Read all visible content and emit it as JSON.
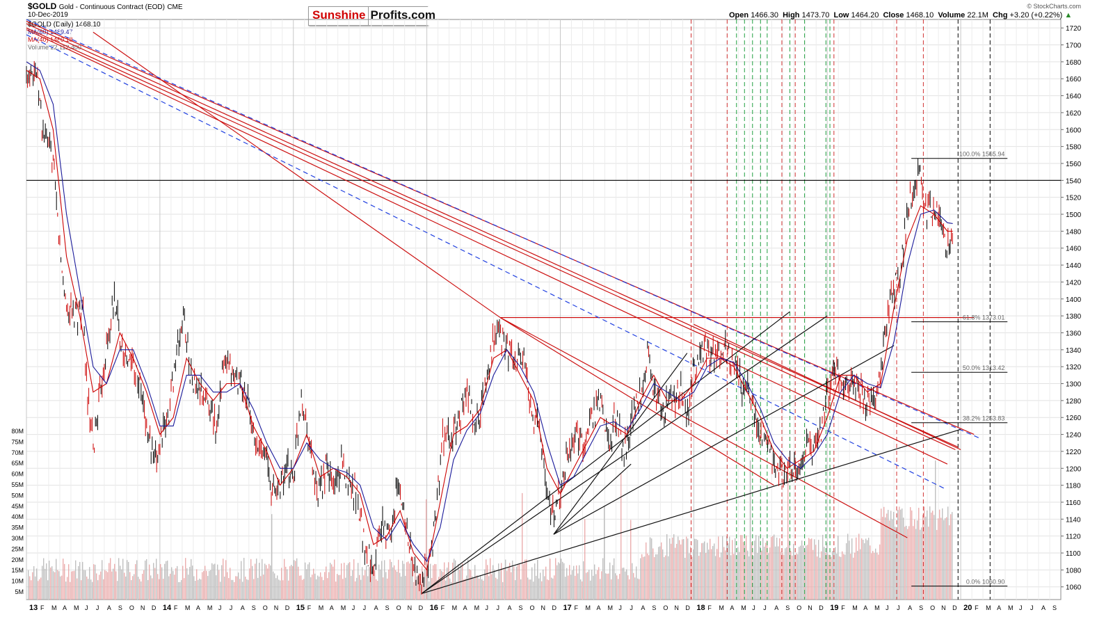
{
  "header": {
    "symbol": "$GOLD",
    "description": "Gold - Continuous Contract (EOD)",
    "exchange": "CME",
    "date": "10-Dec-2019",
    "open_label": "Open",
    "open": "1466.30",
    "high_label": "High",
    "high": "1473.70",
    "low_label": "Low",
    "low": "1464.20",
    "close_label": "Close",
    "close": "1468.10",
    "volume_label": "Volume",
    "volume": "22.1M",
    "chg_label": "Chg",
    "chg": "+3.20 (+0.22%)",
    "copyright": "© StockCharts.com"
  },
  "logo": {
    "part1": "Sunshine",
    "part2": "Profits.com"
  },
  "legend": {
    "gold": "$GOLD (Daily) 1468.10",
    "ma60": "MA(60) 1489.47",
    "ma40": "MA(40) 1480.18",
    "volume": "Volume 22,112,400"
  },
  "colors": {
    "ma60": "#1a1a9a",
    "ma40": "#cc0000",
    "vol_up": "#e8a0a0",
    "vol_down": "#aaaaaa"
  },
  "chart_data": {
    "type": "line",
    "title": "$GOLD Gold - Continuous Contract (EOD)",
    "ylim": [
      1045,
      1730
    ],
    "y_ticks": [
      1060,
      1080,
      1100,
      1120,
      1140,
      1160,
      1180,
      1200,
      1220,
      1240,
      1260,
      1280,
      1300,
      1320,
      1340,
      1360,
      1380,
      1400,
      1420,
      1440,
      1460,
      1480,
      1500,
      1520,
      1540,
      1560,
      1580,
      1600,
      1620,
      1640,
      1660,
      1680,
      1700,
      1720
    ],
    "volume_ticks": [
      "5M",
      "10M",
      "15M",
      "20M",
      "25M",
      "30M",
      "35M",
      "40M",
      "45M",
      "50M",
      "55M",
      "60M",
      "65M",
      "70M",
      "75M",
      "80M"
    ],
    "x_labels": [
      "13",
      "F",
      "M",
      "A",
      "M",
      "J",
      "J",
      "A",
      "S",
      "O",
      "N",
      "D",
      "14",
      "F",
      "M",
      "A",
      "M",
      "J",
      "J",
      "A",
      "S",
      "O",
      "N",
      "D",
      "15",
      "F",
      "M",
      "A",
      "M",
      "J",
      "J",
      "A",
      "S",
      "O",
      "N",
      "D",
      "16",
      "F",
      "M",
      "A",
      "M",
      "J",
      "J",
      "A",
      "S",
      "O",
      "N",
      "D",
      "17",
      "F",
      "M",
      "A",
      "M",
      "J",
      "J",
      "A",
      "S",
      "O",
      "N",
      "D",
      "18",
      "F",
      "M",
      "A",
      "M",
      "J",
      "J",
      "A",
      "S",
      "O",
      "N",
      "D",
      "19",
      "F",
      "M",
      "A",
      "M",
      "J",
      "J",
      "A",
      "S",
      "O",
      "N",
      "D",
      "20",
      "F",
      "M",
      "A",
      "M",
      "J",
      "J",
      "A",
      "S"
    ],
    "x_year_labels": [
      "13",
      "14",
      "15",
      "16",
      "17",
      "18",
      "19",
      "20"
    ],
    "price_path": [
      [
        2013.0,
        1660
      ],
      [
        2013.04,
        1680
      ],
      [
        2013.08,
        1665
      ],
      [
        2013.12,
        1600
      ],
      [
        2013.16,
        1580
      ],
      [
        2013.2,
        1560
      ],
      [
        2013.26,
        1440
      ],
      [
        2013.3,
        1390
      ],
      [
        2013.36,
        1380
      ],
      [
        2013.42,
        1390
      ],
      [
        2013.46,
        1280
      ],
      [
        2013.5,
        1220
      ],
      [
        2013.56,
        1300
      ],
      [
        2013.6,
        1340
      ],
      [
        2013.66,
        1400
      ],
      [
        2013.7,
        1360
      ],
      [
        2013.76,
        1320
      ],
      [
        2013.8,
        1330
      ],
      [
        2013.86,
        1290
      ],
      [
        2013.9,
        1250
      ],
      [
        2013.96,
        1200
      ],
      [
        2014.0,
        1230
      ],
      [
        2014.06,
        1260
      ],
      [
        2014.12,
        1330
      ],
      [
        2014.18,
        1380
      ],
      [
        2014.24,
        1300
      ],
      [
        2014.3,
        1290
      ],
      [
        2014.36,
        1280
      ],
      [
        2014.42,
        1250
      ],
      [
        2014.48,
        1320
      ],
      [
        2014.54,
        1310
      ],
      [
        2014.6,
        1300
      ],
      [
        2014.66,
        1280
      ],
      [
        2014.72,
        1220
      ],
      [
        2014.78,
        1230
      ],
      [
        2014.84,
        1170
      ],
      [
        2014.9,
        1180
      ],
      [
        2014.96,
        1200
      ],
      [
        2015.0,
        1190
      ],
      [
        2015.06,
        1290
      ],
      [
        2015.12,
        1230
      ],
      [
        2015.18,
        1160
      ],
      [
        2015.24,
        1200
      ],
      [
        2015.3,
        1180
      ],
      [
        2015.36,
        1200
      ],
      [
        2015.42,
        1185
      ],
      [
        2015.48,
        1170
      ],
      [
        2015.54,
        1100
      ],
      [
        2015.6,
        1090
      ],
      [
        2015.66,
        1130
      ],
      [
        2015.72,
        1120
      ],
      [
        2015.78,
        1180
      ],
      [
        2015.84,
        1140
      ],
      [
        2015.9,
        1080
      ],
      [
        2015.96,
        1060
      ],
      [
        2016.0,
        1080
      ],
      [
        2016.06,
        1130
      ],
      [
        2016.12,
        1240
      ],
      [
        2016.18,
        1230
      ],
      [
        2016.24,
        1260
      ],
      [
        2016.3,
        1290
      ],
      [
        2016.36,
        1250
      ],
      [
        2016.42,
        1280
      ],
      [
        2016.48,
        1340
      ],
      [
        2016.54,
        1360
      ],
      [
        2016.6,
        1340
      ],
      [
        2016.66,
        1320
      ],
      [
        2016.72,
        1330
      ],
      [
        2016.78,
        1270
      ],
      [
        2016.84,
        1250
      ],
      [
        2016.9,
        1170
      ],
      [
        2016.96,
        1140
      ],
      [
        2017.0,
        1170
      ],
      [
        2017.06,
        1220
      ],
      [
        2017.12,
        1250
      ],
      [
        2017.18,
        1220
      ],
      [
        2017.24,
        1260
      ],
      [
        2017.3,
        1280
      ],
      [
        2017.36,
        1230
      ],
      [
        2017.42,
        1260
      ],
      [
        2017.48,
        1220
      ],
      [
        2017.54,
        1260
      ],
      [
        2017.6,
        1290
      ],
      [
        2017.66,
        1340
      ],
      [
        2017.72,
        1280
      ],
      [
        2017.78,
        1270
      ],
      [
        2017.84,
        1280
      ],
      [
        2017.9,
        1290
      ],
      [
        2017.96,
        1260
      ],
      [
        2018.0,
        1320
      ],
      [
        2018.06,
        1340
      ],
      [
        2018.12,
        1330
      ],
      [
        2018.18,
        1330
      ],
      [
        2018.24,
        1340
      ],
      [
        2018.3,
        1320
      ],
      [
        2018.36,
        1300
      ],
      [
        2018.42,
        1290
      ],
      [
        2018.48,
        1250
      ],
      [
        2018.54,
        1230
      ],
      [
        2018.6,
        1200
      ],
      [
        2018.66,
        1190
      ],
      [
        2018.72,
        1200
      ],
      [
        2018.78,
        1190
      ],
      [
        2018.84,
        1230
      ],
      [
        2018.9,
        1220
      ],
      [
        2018.96,
        1250
      ],
      [
        2019.0,
        1290
      ],
      [
        2019.06,
        1320
      ],
      [
        2019.12,
        1300
      ],
      [
        2019.18,
        1300
      ],
      [
        2019.24,
        1290
      ],
      [
        2019.3,
        1280
      ],
      [
        2019.36,
        1280
      ],
      [
        2019.42,
        1340
      ],
      [
        2019.48,
        1410
      ],
      [
        2019.54,
        1420
      ],
      [
        2019.6,
        1500
      ],
      [
        2019.66,
        1540
      ],
      [
        2019.7,
        1550
      ],
      [
        2019.74,
        1500
      ],
      [
        2019.8,
        1510
      ],
      [
        2019.86,
        1480
      ],
      [
        2019.9,
        1460
      ],
      [
        2019.94,
        1468
      ]
    ],
    "ma40_path": [
      [
        2013.0,
        1670
      ],
      [
        2013.1,
        1660
      ],
      [
        2013.2,
        1600
      ],
      [
        2013.3,
        1450
      ],
      [
        2013.4,
        1380
      ],
      [
        2013.5,
        1290
      ],
      [
        2013.6,
        1300
      ],
      [
        2013.7,
        1360
      ],
      [
        2013.8,
        1330
      ],
      [
        2013.9,
        1290
      ],
      [
        2014.0,
        1240
      ],
      [
        2014.1,
        1260
      ],
      [
        2014.2,
        1330
      ],
      [
        2014.3,
        1300
      ],
      [
        2014.4,
        1280
      ],
      [
        2014.5,
        1300
      ],
      [
        2014.6,
        1300
      ],
      [
        2014.7,
        1250
      ],
      [
        2014.8,
        1220
      ],
      [
        2014.9,
        1180
      ],
      [
        2015.0,
        1200
      ],
      [
        2015.1,
        1240
      ],
      [
        2015.2,
        1190
      ],
      [
        2015.3,
        1200
      ],
      [
        2015.4,
        1190
      ],
      [
        2015.5,
        1170
      ],
      [
        2015.6,
        1110
      ],
      [
        2015.7,
        1120
      ],
      [
        2015.8,
        1150
      ],
      [
        2015.9,
        1100
      ],
      [
        2016.0,
        1080
      ],
      [
        2016.1,
        1160
      ],
      [
        2016.2,
        1240
      ],
      [
        2016.3,
        1250
      ],
      [
        2016.4,
        1270
      ],
      [
        2016.5,
        1330
      ],
      [
        2016.6,
        1340
      ],
      [
        2016.7,
        1310
      ],
      [
        2016.8,
        1280
      ],
      [
        2016.9,
        1200
      ],
      [
        2017.0,
        1170
      ],
      [
        2017.1,
        1200
      ],
      [
        2017.2,
        1230
      ],
      [
        2017.3,
        1260
      ],
      [
        2017.4,
        1250
      ],
      [
        2017.5,
        1240
      ],
      [
        2017.6,
        1280
      ],
      [
        2017.7,
        1310
      ],
      [
        2017.8,
        1280
      ],
      [
        2017.9,
        1280
      ],
      [
        2018.0,
        1300
      ],
      [
        2018.1,
        1330
      ],
      [
        2018.2,
        1330
      ],
      [
        2018.3,
        1320
      ],
      [
        2018.4,
        1290
      ],
      [
        2018.5,
        1260
      ],
      [
        2018.6,
        1220
      ],
      [
        2018.7,
        1200
      ],
      [
        2018.8,
        1210
      ],
      [
        2018.9,
        1220
      ],
      [
        2019.0,
        1260
      ],
      [
        2019.1,
        1310
      ],
      [
        2019.2,
        1310
      ],
      [
        2019.3,
        1290
      ],
      [
        2019.4,
        1300
      ],
      [
        2019.5,
        1390
      ],
      [
        2019.6,
        1470
      ],
      [
        2019.7,
        1510
      ],
      [
        2019.8,
        1500
      ],
      [
        2019.9,
        1480
      ],
      [
        2019.94,
        1480
      ]
    ],
    "ma60_path": [
      [
        2013.0,
        1680
      ],
      [
        2013.1,
        1670
      ],
      [
        2013.2,
        1630
      ],
      [
        2013.3,
        1500
      ],
      [
        2013.4,
        1410
      ],
      [
        2013.5,
        1320
      ],
      [
        2013.6,
        1300
      ],
      [
        2013.7,
        1340
      ],
      [
        2013.8,
        1340
      ],
      [
        2013.9,
        1300
      ],
      [
        2014.0,
        1250
      ],
      [
        2014.1,
        1250
      ],
      [
        2014.2,
        1310
      ],
      [
        2014.3,
        1310
      ],
      [
        2014.4,
        1290
      ],
      [
        2014.5,
        1290
      ],
      [
        2014.6,
        1300
      ],
      [
        2014.7,
        1270
      ],
      [
        2014.8,
        1230
      ],
      [
        2014.9,
        1200
      ],
      [
        2015.0,
        1200
      ],
      [
        2015.1,
        1230
      ],
      [
        2015.2,
        1210
      ],
      [
        2015.3,
        1200
      ],
      [
        2015.4,
        1195
      ],
      [
        2015.5,
        1180
      ],
      [
        2015.6,
        1130
      ],
      [
        2015.7,
        1115
      ],
      [
        2015.8,
        1140
      ],
      [
        2015.9,
        1110
      ],
      [
        2016.0,
        1090
      ],
      [
        2016.1,
        1130
      ],
      [
        2016.2,
        1210
      ],
      [
        2016.3,
        1245
      ],
      [
        2016.4,
        1265
      ],
      [
        2016.5,
        1310
      ],
      [
        2016.6,
        1340
      ],
      [
        2016.7,
        1320
      ],
      [
        2016.8,
        1290
      ],
      [
        2016.9,
        1230
      ],
      [
        2017.0,
        1180
      ],
      [
        2017.1,
        1190
      ],
      [
        2017.2,
        1220
      ],
      [
        2017.3,
        1250
      ],
      [
        2017.4,
        1255
      ],
      [
        2017.5,
        1245
      ],
      [
        2017.6,
        1270
      ],
      [
        2017.7,
        1300
      ],
      [
        2017.8,
        1290
      ],
      [
        2017.9,
        1280
      ],
      [
        2018.0,
        1290
      ],
      [
        2018.1,
        1320
      ],
      [
        2018.2,
        1330
      ],
      [
        2018.3,
        1325
      ],
      [
        2018.4,
        1300
      ],
      [
        2018.5,
        1270
      ],
      [
        2018.6,
        1230
      ],
      [
        2018.7,
        1210
      ],
      [
        2018.8,
        1200
      ],
      [
        2018.9,
        1215
      ],
      [
        2019.0,
        1240
      ],
      [
        2019.1,
        1290
      ],
      [
        2019.2,
        1310
      ],
      [
        2019.3,
        1300
      ],
      [
        2019.4,
        1295
      ],
      [
        2019.5,
        1350
      ],
      [
        2019.6,
        1440
      ],
      [
        2019.7,
        1500
      ],
      [
        2019.8,
        1505
      ],
      [
        2019.9,
        1490
      ],
      [
        2019.94,
        1489
      ]
    ],
    "horizontal_lines": [
      {
        "y": 1540,
        "color": "#000000"
      },
      {
        "y": 1378,
        "color": "#cc0000"
      }
    ],
    "fib_levels": [
      {
        "label": "100.0% 1565.94",
        "y": 1565.94
      },
      {
        "label": "61.8% 1373.01",
        "y": 1373.01
      },
      {
        "label": "50.0% 1313.42",
        "y": 1313.42
      },
      {
        "label": "38.2% 1253.83",
        "y": 1253.83
      },
      {
        "label": "0.0% 1060.90",
        "y": 1060.9
      }
    ],
    "red_trend_lines": [
      [
        [
          2013.0,
          1725
        ],
        [
          2019.98,
          1225
        ]
      ],
      [
        [
          2013.0,
          1720
        ],
        [
          2019.96,
          1222
        ]
      ],
      [
        [
          2013.0,
          1728
        ],
        [
          2020.1,
          1240
        ]
      ],
      [
        [
          2013.0,
          1718
        ],
        [
          2019.9,
          1205
        ]
      ],
      [
        [
          2013.5,
          1715
        ],
        [
          2016.55,
          1378
        ]
      ],
      [
        [
          2016.55,
          1378
        ],
        [
          2018.6,
          1180
        ]
      ],
      [
        [
          2016.55,
          1378
        ],
        [
          2019.6,
          1118
        ]
      ],
      [
        [
          2018.0,
          1370
        ],
        [
          2020.0,
          1222
        ]
      ]
    ],
    "blue_dashed_lines": [
      [
        [
          2013.0,
          1730
        ],
        [
          2020.15,
          1235
        ]
      ],
      [
        [
          2013.0,
          1712
        ],
        [
          2019.88,
          1176
        ]
      ]
    ],
    "black_trend_lines": [
      [
        [
          2015.96,
          1052
        ],
        [
          2020.0,
          1246
        ]
      ],
      [
        [
          2015.96,
          1052
        ],
        [
          2018.72,
          1385
        ]
      ],
      [
        [
          2015.96,
          1052
        ],
        [
          2019.0,
          1380
        ]
      ],
      [
        [
          2016.95,
          1122
        ],
        [
          2019.5,
          1345
        ]
      ],
      [
        [
          2016.95,
          1122
        ],
        [
          2017.95,
          1336
        ]
      ],
      [
        [
          2016.95,
          1122
        ],
        [
          2017.53,
          1205
        ]
      ]
    ],
    "red_vlines": [
      2017.98,
      2018.25,
      2018.66,
      2018.76,
      2019.05,
      2019.52,
      2019.72
    ],
    "green_vlines": [
      2018.32,
      2018.38,
      2018.44,
      2018.5,
      2018.55,
      2018.72,
      2018.83,
      2018.99,
      2019.02
    ],
    "black_vlines": [
      2019.98,
      2020.22
    ],
    "volume_sample_note": ""
  }
}
